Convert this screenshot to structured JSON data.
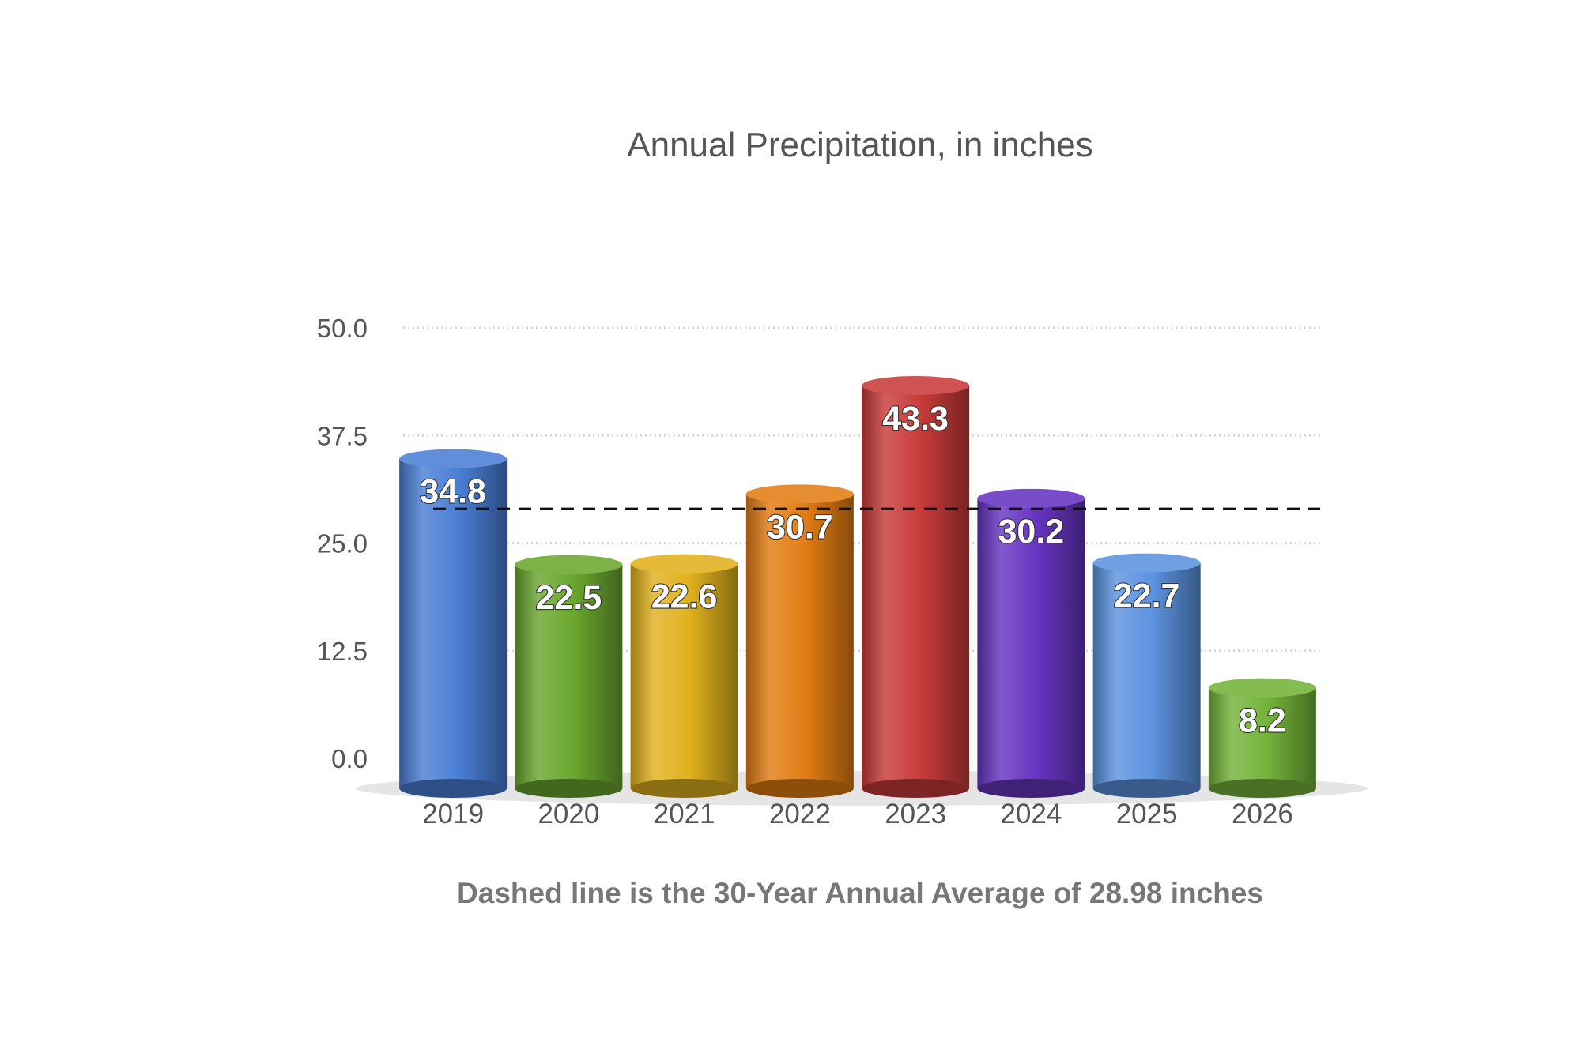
{
  "chart_data": {
    "type": "bar",
    "title": "Annual Precipitation, in inches",
    "caption": "Dashed line is the 30-Year Annual Average of 28.98 inches",
    "categories": [
      "2019",
      "2020",
      "2021",
      "2022",
      "2023",
      "2024",
      "2025",
      "2026"
    ],
    "values": [
      34.8,
      22.5,
      22.6,
      30.7,
      43.3,
      30.2,
      22.7,
      8.2
    ],
    "data_labels": [
      "34.8",
      "22.5",
      "22.6",
      "30.7",
      "43.3",
      "30.2",
      "22.7",
      "8.2"
    ],
    "y_ticks": [
      "0.0",
      "12.5",
      "25.0",
      "37.5",
      "50.0"
    ],
    "y_tick_values": [
      0,
      12.5,
      25,
      37.5,
      50
    ],
    "ylim": [
      0,
      50
    ],
    "reference_line": {
      "value": 28.98,
      "style": "dashed",
      "color": "#111111"
    },
    "grid": "horizontal dotted",
    "bar_style": "3d cylinder",
    "colors": [
      "#4a7fd6",
      "#6aa72e",
      "#e0b11d",
      "#e37d14",
      "#c93b3b",
      "#6735c2",
      "#5c93e0",
      "#74b33a"
    ]
  }
}
